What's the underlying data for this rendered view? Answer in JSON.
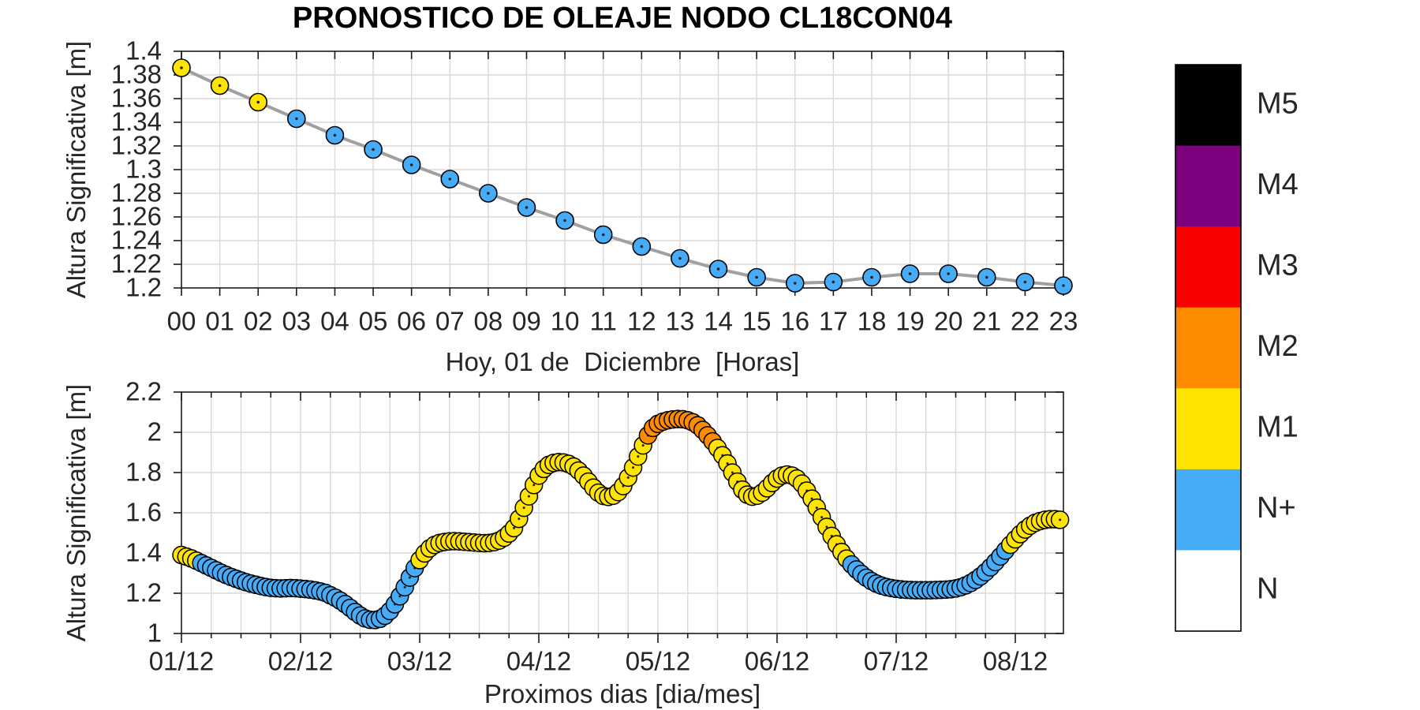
{
  "title": "PRONOSTICO DE OLEAJE NODO CL18CON04",
  "category_colors": {
    "M5": "#000000",
    "M4": "#7c017e",
    "M3": "#fc0000",
    "M2": "#ff8c00",
    "M1": "#ffe400",
    "N+": "#47acf8",
    "N": "#ffffff"
  },
  "legend": {
    "items": [
      {
        "label": "M5",
        "color": "#000000"
      },
      {
        "label": "M4",
        "color": "#7c017e"
      },
      {
        "label": "M3",
        "color": "#fc0000"
      },
      {
        "label": "M2",
        "color": "#ff8c00"
      },
      {
        "label": "M1",
        "color": "#ffe400"
      },
      {
        "label": "N+",
        "color": "#47acf8"
      },
      {
        "label": "N",
        "color": "#ffffff"
      }
    ]
  },
  "chart_data": [
    {
      "type": "line",
      "name": "hourly-forecast-today",
      "ylabel": "Altura Significativa [m]",
      "xlabel": "Hoy, 01 de  Diciembre  [Horas]",
      "ylim": [
        1.2,
        1.4
      ],
      "ytick_values": [
        1.4,
        1.38,
        1.36,
        1.34,
        1.32,
        1.3,
        1.28,
        1.26,
        1.24,
        1.22,
        1.2
      ],
      "ytick_labels": [
        "1.4",
        "1.38",
        "1.36",
        "1.34",
        "1.32",
        "1.3",
        "1.28",
        "1.26",
        "1.24",
        "1.22",
        "1.2"
      ],
      "xtick_labels": [
        "00",
        "01",
        "02",
        "03",
        "04",
        "05",
        "06",
        "07",
        "08",
        "09",
        "10",
        "11",
        "12",
        "13",
        "14",
        "15",
        "16",
        "17",
        "18",
        "19",
        "20",
        "21",
        "22",
        "23"
      ],
      "values": [
        1.386,
        1.371,
        1.357,
        1.343,
        1.329,
        1.317,
        1.304,
        1.292,
        1.28,
        1.268,
        1.257,
        1.245,
        1.235,
        1.225,
        1.216,
        1.209,
        1.204,
        1.205,
        1.209,
        1.212,
        1.212,
        1.209,
        1.205,
        1.202
      ],
      "point_categories": [
        "M1",
        "M1",
        "M1",
        "N+",
        "N+",
        "N+",
        "N+",
        "N+",
        "N+",
        "N+",
        "N+",
        "N+",
        "N+",
        "N+",
        "N+",
        "N+",
        "N+",
        "N+",
        "N+",
        "N+",
        "N+",
        "N+",
        "N+",
        "N+"
      ]
    },
    {
      "type": "line",
      "name": "daily-forecast-week",
      "ylabel": "Altura Significativa [m]",
      "xlabel": "Proximos dias [dia/mes]",
      "ylim": [
        1,
        2.2
      ],
      "ytick_values": [
        2.2,
        2,
        1.8,
        1.6,
        1.4,
        1.2,
        1
      ],
      "ytick_labels": [
        "2.2",
        "2",
        "1.8",
        "1.6",
        "1.4",
        "1.2",
        "1"
      ],
      "xtick_labels": [
        "01/12",
        "02/12",
        "03/12",
        "04/12",
        "05/12",
        "06/12",
        "07/12",
        "08/12"
      ],
      "points_per_day": 24,
      "values": [
        1.39,
        1.382,
        1.373,
        1.362,
        1.35,
        1.338,
        1.326,
        1.314,
        1.302,
        1.291,
        1.281,
        1.272,
        1.263,
        1.255,
        1.248,
        1.242,
        1.236,
        1.231,
        1.227,
        1.225,
        1.224,
        1.225,
        1.226,
        1.225,
        1.223,
        1.221,
        1.218,
        1.214,
        1.209,
        1.202,
        1.19,
        1.178,
        1.163,
        1.146,
        1.127,
        1.107,
        1.089,
        1.075,
        1.068,
        1.067,
        1.073,
        1.088,
        1.112,
        1.145,
        1.185,
        1.23,
        1.278,
        1.325,
        1.365,
        1.398,
        1.423,
        1.44,
        1.45,
        1.455,
        1.458,
        1.459,
        1.458,
        1.456,
        1.454,
        1.452,
        1.45,
        1.449,
        1.45,
        1.454,
        1.462,
        1.476,
        1.497,
        1.524,
        1.57,
        1.625,
        1.682,
        1.738,
        1.785,
        1.818,
        1.838,
        1.848,
        1.852,
        1.85,
        1.843,
        1.83,
        1.81,
        1.785,
        1.755,
        1.725,
        1.7,
        1.684,
        1.679,
        1.685,
        1.703,
        1.733,
        1.775,
        1.825,
        1.88,
        1.935,
        1.985,
        2.022,
        2.042,
        2.053,
        2.06,
        2.064,
        2.066,
        2.065,
        2.06,
        2.05,
        2.035,
        2.012,
        1.985,
        1.955,
        1.922,
        1.886,
        1.845,
        1.8,
        1.755,
        1.715,
        1.69,
        1.68,
        1.685,
        1.7,
        1.722,
        1.748,
        1.77,
        1.785,
        1.79,
        1.785,
        1.77,
        1.745,
        1.71,
        1.67,
        1.625,
        1.578,
        1.53,
        1.485,
        1.443,
        1.405,
        1.372,
        1.343,
        1.318,
        1.296,
        1.277,
        1.261,
        1.248,
        1.238,
        1.231,
        1.226,
        1.222,
        1.219,
        1.217,
        1.216,
        1.215,
        1.215,
        1.215,
        1.215,
        1.216,
        1.217,
        1.218,
        1.22,
        1.224,
        1.23,
        1.239,
        1.251,
        1.266,
        1.284,
        1.305,
        1.329,
        1.355,
        1.383,
        1.412,
        1.441,
        1.468,
        1.494,
        1.517,
        1.536,
        1.55,
        1.559,
        1.565,
        1.568,
        1.568,
        1.565
      ],
      "category_segments": [
        [
          0,
          3,
          "M1"
        ],
        [
          4,
          47,
          "N+"
        ],
        [
          48,
          93,
          "M1"
        ],
        [
          94,
          107,
          "M2"
        ],
        [
          108,
          134,
          "M1"
        ],
        [
          135,
          166,
          "N+"
        ],
        [
          167,
          177,
          "M1"
        ]
      ]
    }
  ]
}
